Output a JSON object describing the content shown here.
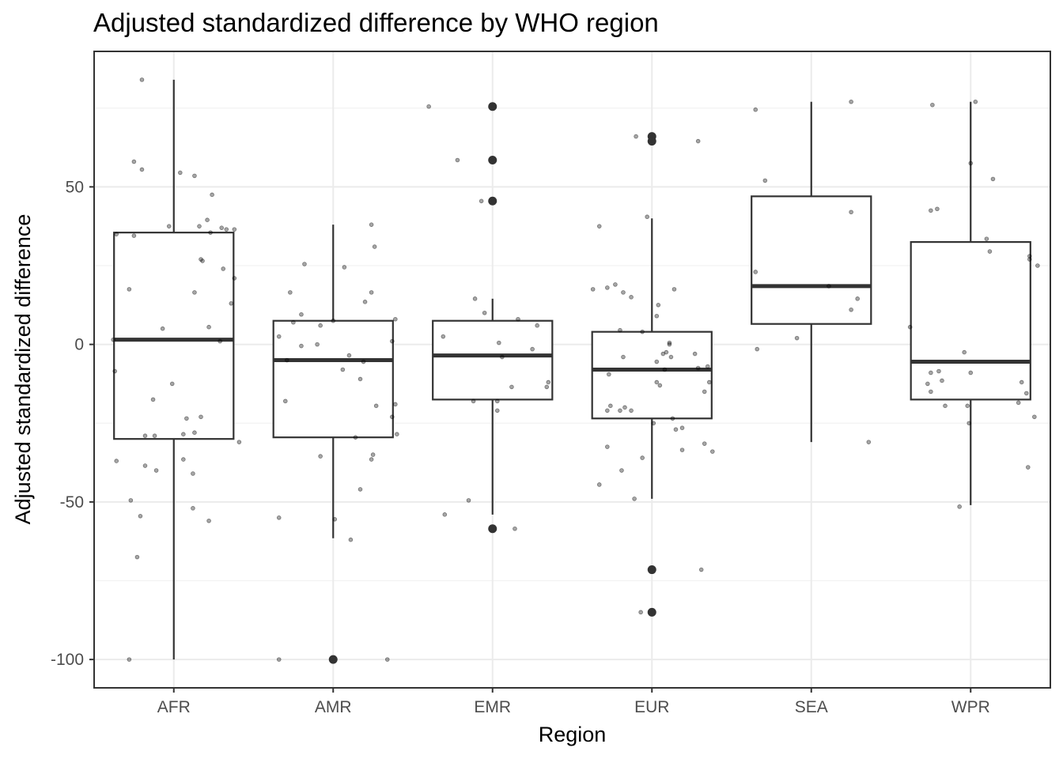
{
  "chart_data": {
    "type": "box",
    "title": "Adjusted standardized difference by WHO region",
    "xlabel": "Region",
    "ylabel": "Adjusted standardized difference",
    "categories": [
      "AFR",
      "AMR",
      "EMR",
      "EUR",
      "SEA",
      "WPR"
    ],
    "ylim": [
      -109,
      93
    ],
    "yticks": [
      -100,
      -50,
      0,
      50
    ],
    "ytick_labels": [
      "-100",
      "-50",
      "0",
      "50"
    ],
    "grid": true,
    "legend": "none",
    "boxes": [
      {
        "category": "AFR",
        "q1": -30,
        "median": 1.5,
        "q3": 35.5,
        "whisker_low": -100,
        "whisker_high": 84,
        "outliers": []
      },
      {
        "category": "AMR",
        "q1": -29.5,
        "median": -5,
        "q3": 7.5,
        "whisker_low": -61.5,
        "whisker_high": 38,
        "outliers": [
          -100
        ]
      },
      {
        "category": "EMR",
        "q1": -17.5,
        "median": -3.5,
        "q3": 7.5,
        "whisker_low": -54,
        "whisker_high": 14.5,
        "outliers": [
          75.5,
          58.5,
          45.5,
          -58.5
        ]
      },
      {
        "category": "EUR",
        "q1": -23.5,
        "median": -8,
        "q3": 4,
        "whisker_low": -49,
        "whisker_high": 40,
        "outliers": [
          66,
          64.5,
          -71.5,
          -85
        ]
      },
      {
        "category": "SEA",
        "q1": 6.5,
        "median": 18.5,
        "q3": 47,
        "whisker_low": -31,
        "whisker_high": 77,
        "outliers": []
      },
      {
        "category": "WPR",
        "q1": -17.5,
        "median": -5.5,
        "q3": 32.5,
        "whisker_low": -51,
        "whisker_high": 77,
        "outliers": []
      }
    ],
    "points": [
      {
        "category": "AFR",
        "dx": -0.2,
        "y": 84
      },
      {
        "category": "AFR",
        "dx": -0.25,
        "y": 58
      },
      {
        "category": "AFR",
        "dx": -0.2,
        "y": 55.5
      },
      {
        "category": "AFR",
        "dx": 0.04,
        "y": 54.5
      },
      {
        "category": "AFR",
        "dx": 0.13,
        "y": 53.5
      },
      {
        "category": "AFR",
        "dx": 0.24,
        "y": 47.5
      },
      {
        "category": "AFR",
        "dx": 0.21,
        "y": 39.5
      },
      {
        "category": "AFR",
        "dx": -0.03,
        "y": 37.5
      },
      {
        "category": "AFR",
        "dx": 0.16,
        "y": 37.5
      },
      {
        "category": "AFR",
        "dx": 0.3,
        "y": 37
      },
      {
        "category": "AFR",
        "dx": 0.33,
        "y": 36.5
      },
      {
        "category": "AFR",
        "dx": 0.38,
        "y": 36.5
      },
      {
        "category": "AFR",
        "dx": 0.23,
        "y": 35.5
      },
      {
        "category": "AFR",
        "dx": -0.36,
        "y": 35
      },
      {
        "category": "AFR",
        "dx": -0.25,
        "y": 34.5
      },
      {
        "category": "AFR",
        "dx": 0.17,
        "y": 27
      },
      {
        "category": "AFR",
        "dx": 0.18,
        "y": 26.5
      },
      {
        "category": "AFR",
        "dx": 0.31,
        "y": 24
      },
      {
        "category": "AFR",
        "dx": 0.38,
        "y": 21
      },
      {
        "category": "AFR",
        "dx": -0.28,
        "y": 17.5
      },
      {
        "category": "AFR",
        "dx": 0.13,
        "y": 16.5
      },
      {
        "category": "AFR",
        "dx": 0.36,
        "y": 13
      },
      {
        "category": "AFR",
        "dx": -0.07,
        "y": 5
      },
      {
        "category": "AFR",
        "dx": 0.22,
        "y": 5.5
      },
      {
        "category": "AFR",
        "dx": -0.38,
        "y": 1.5
      },
      {
        "category": "AFR",
        "dx": 0.29,
        "y": 1
      },
      {
        "category": "AFR",
        "dx": -0.37,
        "y": -8.5
      },
      {
        "category": "AFR",
        "dx": -0.01,
        "y": -12.5
      },
      {
        "category": "AFR",
        "dx": -0.13,
        "y": -17.5
      },
      {
        "category": "AFR",
        "dx": 0.08,
        "y": -23.5
      },
      {
        "category": "AFR",
        "dx": 0.17,
        "y": -23
      },
      {
        "category": "AFR",
        "dx": -0.18,
        "y": -29
      },
      {
        "category": "AFR",
        "dx": -0.12,
        "y": -29
      },
      {
        "category": "AFR",
        "dx": 0.06,
        "y": -28.5
      },
      {
        "category": "AFR",
        "dx": 0.13,
        "y": -28
      },
      {
        "category": "AFR",
        "dx": 0.41,
        "y": -31
      },
      {
        "category": "AFR",
        "dx": -0.36,
        "y": -37
      },
      {
        "category": "AFR",
        "dx": 0.06,
        "y": -36.5
      },
      {
        "category": "AFR",
        "dx": -0.18,
        "y": -38.5
      },
      {
        "category": "AFR",
        "dx": -0.11,
        "y": -40
      },
      {
        "category": "AFR",
        "dx": 0.12,
        "y": -41
      },
      {
        "category": "AFR",
        "dx": -0.27,
        "y": -49.5
      },
      {
        "category": "AFR",
        "dx": 0.12,
        "y": -52
      },
      {
        "category": "AFR",
        "dx": -0.21,
        "y": -54.5
      },
      {
        "category": "AFR",
        "dx": 0.22,
        "y": -56
      },
      {
        "category": "AFR",
        "dx": -0.23,
        "y": -67.5
      },
      {
        "category": "AFR",
        "dx": -0.28,
        "y": -100
      },
      {
        "category": "AMR",
        "dx": 0.24,
        "y": 38
      },
      {
        "category": "AMR",
        "dx": 0.26,
        "y": 31
      },
      {
        "category": "AMR",
        "dx": -0.18,
        "y": 25.5
      },
      {
        "category": "AMR",
        "dx": 0.07,
        "y": 24.5
      },
      {
        "category": "AMR",
        "dx": -0.27,
        "y": 16.5
      },
      {
        "category": "AMR",
        "dx": 0.24,
        "y": 16.5
      },
      {
        "category": "AMR",
        "dx": 0.2,
        "y": 13.5
      },
      {
        "category": "AMR",
        "dx": -0.2,
        "y": 9.5
      },
      {
        "category": "AMR",
        "dx": 0.39,
        "y": 8
      },
      {
        "category": "AMR",
        "dx": 0.0,
        "y": 7.5
      },
      {
        "category": "AMR",
        "dx": -0.25,
        "y": 7
      },
      {
        "category": "AMR",
        "dx": -0.08,
        "y": 6
      },
      {
        "category": "AMR",
        "dx": -0.34,
        "y": 2.5
      },
      {
        "category": "AMR",
        "dx": 0.37,
        "y": 1
      },
      {
        "category": "AMR",
        "dx": -0.1,
        "y": 0
      },
      {
        "category": "AMR",
        "dx": -0.2,
        "y": -0.5
      },
      {
        "category": "AMR",
        "dx": 0.1,
        "y": -3.5
      },
      {
        "category": "AMR",
        "dx": -0.29,
        "y": -5
      },
      {
        "category": "AMR",
        "dx": 0.19,
        "y": -5.5
      },
      {
        "category": "AMR",
        "dx": 0.06,
        "y": -8
      },
      {
        "category": "AMR",
        "dx": 0.17,
        "y": -11
      },
      {
        "category": "AMR",
        "dx": -0.3,
        "y": -18
      },
      {
        "category": "AMR",
        "dx": 0.27,
        "y": -19.5
      },
      {
        "category": "AMR",
        "dx": 0.39,
        "y": -19
      },
      {
        "category": "AMR",
        "dx": 0.37,
        "y": -23
      },
      {
        "category": "AMR",
        "dx": 0.4,
        "y": -28.5
      },
      {
        "category": "AMR",
        "dx": 0.14,
        "y": -29.5
      },
      {
        "category": "AMR",
        "dx": 0.25,
        "y": -35
      },
      {
        "category": "AMR",
        "dx": -0.08,
        "y": -35.5
      },
      {
        "category": "AMR",
        "dx": 0.24,
        "y": -36.5
      },
      {
        "category": "AMR",
        "dx": 0.17,
        "y": -46
      },
      {
        "category": "AMR",
        "dx": -0.34,
        "y": -55
      },
      {
        "category": "AMR",
        "dx": 0.01,
        "y": -55.5
      },
      {
        "category": "AMR",
        "dx": 0.11,
        "y": -62
      },
      {
        "category": "AMR",
        "dx": -0.34,
        "y": -100
      },
      {
        "category": "AMR",
        "dx": 0.34,
        "y": -100
      },
      {
        "category": "EMR",
        "dx": -0.4,
        "y": 75.5
      },
      {
        "category": "EMR",
        "dx": -0.22,
        "y": 58.5
      },
      {
        "category": "EMR",
        "dx": -0.07,
        "y": 45.5
      },
      {
        "category": "EMR",
        "dx": -0.11,
        "y": 14.5
      },
      {
        "category": "EMR",
        "dx": -0.05,
        "y": 10
      },
      {
        "category": "EMR",
        "dx": 0.16,
        "y": 8
      },
      {
        "category": "EMR",
        "dx": 0.28,
        "y": 6
      },
      {
        "category": "EMR",
        "dx": -0.31,
        "y": 2.5
      },
      {
        "category": "EMR",
        "dx": 0.04,
        "y": 0.5
      },
      {
        "category": "EMR",
        "dx": 0.25,
        "y": -1.5
      },
      {
        "category": "EMR",
        "dx": 0.06,
        "y": -4
      },
      {
        "category": "EMR",
        "dx": 0.35,
        "y": -12
      },
      {
        "category": "EMR",
        "dx": 0.34,
        "y": -13.5
      },
      {
        "category": "EMR",
        "dx": 0.12,
        "y": -13.5
      },
      {
        "category": "EMR",
        "dx": -0.12,
        "y": -18
      },
      {
        "category": "EMR",
        "dx": 0.03,
        "y": -18
      },
      {
        "category": "EMR",
        "dx": 0.03,
        "y": -21
      },
      {
        "category": "EMR",
        "dx": -0.15,
        "y": -49.5
      },
      {
        "category": "EMR",
        "dx": -0.3,
        "y": -54
      },
      {
        "category": "EMR",
        "dx": 0.14,
        "y": -58.5
      },
      {
        "category": "EUR",
        "dx": -0.1,
        "y": 66
      },
      {
        "category": "EUR",
        "dx": 0.29,
        "y": 64.5
      },
      {
        "category": "EUR",
        "dx": -0.03,
        "y": 40.5
      },
      {
        "category": "EUR",
        "dx": -0.33,
        "y": 37.5
      },
      {
        "category": "EUR",
        "dx": -0.37,
        "y": 17.5
      },
      {
        "category": "EUR",
        "dx": -0.23,
        "y": 19
      },
      {
        "category": "EUR",
        "dx": -0.28,
        "y": 18
      },
      {
        "category": "EUR",
        "dx": -0.18,
        "y": 16.5
      },
      {
        "category": "EUR",
        "dx": -0.13,
        "y": 15
      },
      {
        "category": "EUR",
        "dx": 0.14,
        "y": 17.5
      },
      {
        "category": "EUR",
        "dx": 0.04,
        "y": 12.5
      },
      {
        "category": "EUR",
        "dx": 0.03,
        "y": 9
      },
      {
        "category": "EUR",
        "dx": -0.2,
        "y": 4.5
      },
      {
        "category": "EUR",
        "dx": -0.06,
        "y": 4
      },
      {
        "category": "EUR",
        "dx": 0.11,
        "y": 0.5
      },
      {
        "category": "EUR",
        "dx": 0.11,
        "y": 0
      },
      {
        "category": "EUR",
        "dx": 0.09,
        "y": -2.5
      },
      {
        "category": "EUR",
        "dx": 0.07,
        "y": -3
      },
      {
        "category": "EUR",
        "dx": 0.27,
        "y": -3
      },
      {
        "category": "EUR",
        "dx": -0.18,
        "y": -4
      },
      {
        "category": "EUR",
        "dx": 0.12,
        "y": -4
      },
      {
        "category": "EUR",
        "dx": 0.03,
        "y": -5.5
      },
      {
        "category": "EUR",
        "dx": 0.08,
        "y": -8
      },
      {
        "category": "EUR",
        "dx": 0.29,
        "y": -7.5
      },
      {
        "category": "EUR",
        "dx": 0.35,
        "y": -7
      },
      {
        "category": "EUR",
        "dx": -0.27,
        "y": -9.5
      },
      {
        "category": "EUR",
        "dx": 0.03,
        "y": -12
      },
      {
        "category": "EUR",
        "dx": 0.05,
        "y": -13
      },
      {
        "category": "EUR",
        "dx": 0.36,
        "y": -12
      },
      {
        "category": "EUR",
        "dx": 0.33,
        "y": -15
      },
      {
        "category": "EUR",
        "dx": -0.26,
        "y": -19.5
      },
      {
        "category": "EUR",
        "dx": -0.17,
        "y": -20
      },
      {
        "category": "EUR",
        "dx": -0.28,
        "y": -21
      },
      {
        "category": "EUR",
        "dx": -0.2,
        "y": -21
      },
      {
        "category": "EUR",
        "dx": -0.13,
        "y": -21
      },
      {
        "category": "EUR",
        "dx": 0.13,
        "y": -23.5
      },
      {
        "category": "EUR",
        "dx": 0.01,
        "y": -25
      },
      {
        "category": "EUR",
        "dx": 0.19,
        "y": -26.5
      },
      {
        "category": "EUR",
        "dx": 0.15,
        "y": -27
      },
      {
        "category": "EUR",
        "dx": 0.33,
        "y": -31.5
      },
      {
        "category": "EUR",
        "dx": -0.28,
        "y": -32.5
      },
      {
        "category": "EUR",
        "dx": 0.19,
        "y": -33.5
      },
      {
        "category": "EUR",
        "dx": 0.38,
        "y": -34
      },
      {
        "category": "EUR",
        "dx": -0.06,
        "y": -36
      },
      {
        "category": "EUR",
        "dx": -0.19,
        "y": -40
      },
      {
        "category": "EUR",
        "dx": -0.33,
        "y": -44.5
      },
      {
        "category": "EUR",
        "dx": -0.11,
        "y": -49
      },
      {
        "category": "EUR",
        "dx": 0.31,
        "y": -71.5
      },
      {
        "category": "EUR",
        "dx": -0.07,
        "y": -85
      },
      {
        "category": "SEA",
        "dx": -0.35,
        "y": 74.5
      },
      {
        "category": "SEA",
        "dx": 0.25,
        "y": 77
      },
      {
        "category": "SEA",
        "dx": -0.29,
        "y": 52
      },
      {
        "category": "SEA",
        "dx": 0.25,
        "y": 42
      },
      {
        "category": "SEA",
        "dx": -0.35,
        "y": 23
      },
      {
        "category": "SEA",
        "dx": 0.11,
        "y": 18.5
      },
      {
        "category": "SEA",
        "dx": 0.29,
        "y": 14.5
      },
      {
        "category": "SEA",
        "dx": 0.25,
        "y": 11
      },
      {
        "category": "SEA",
        "dx": -0.09,
        "y": 2
      },
      {
        "category": "SEA",
        "dx": -0.34,
        "y": -1.5
      },
      {
        "category": "SEA",
        "dx": 0.36,
        "y": -31
      },
      {
        "category": "WPR",
        "dx": -0.24,
        "y": 76
      },
      {
        "category": "WPR",
        "dx": 0.03,
        "y": 77
      },
      {
        "category": "WPR",
        "dx": 0.0,
        "y": 57.5
      },
      {
        "category": "WPR",
        "dx": 0.14,
        "y": 52.5
      },
      {
        "category": "WPR",
        "dx": -0.25,
        "y": 42.5
      },
      {
        "category": "WPR",
        "dx": -0.21,
        "y": 43
      },
      {
        "category": "WPR",
        "dx": 0.1,
        "y": 33.5
      },
      {
        "category": "WPR",
        "dx": 0.12,
        "y": 29.5
      },
      {
        "category": "WPR",
        "dx": 0.37,
        "y": 28
      },
      {
        "category": "WPR",
        "dx": 0.37,
        "y": 27
      },
      {
        "category": "WPR",
        "dx": 0.42,
        "y": 25
      },
      {
        "category": "WPR",
        "dx": -0.38,
        "y": 5.5
      },
      {
        "category": "WPR",
        "dx": -0.04,
        "y": -2.5
      },
      {
        "category": "WPR",
        "dx": -0.2,
        "y": -8.5
      },
      {
        "category": "WPR",
        "dx": 0.0,
        "y": -9
      },
      {
        "category": "WPR",
        "dx": -0.25,
        "y": -9
      },
      {
        "category": "WPR",
        "dx": -0.27,
        "y": -12.5
      },
      {
        "category": "WPR",
        "dx": -0.18,
        "y": -11.5
      },
      {
        "category": "WPR",
        "dx": 0.32,
        "y": -12
      },
      {
        "category": "WPR",
        "dx": -0.25,
        "y": -15
      },
      {
        "category": "WPR",
        "dx": 0.35,
        "y": -15.5
      },
      {
        "category": "WPR",
        "dx": 0.3,
        "y": -18.5
      },
      {
        "category": "WPR",
        "dx": -0.02,
        "y": -19.5
      },
      {
        "category": "WPR",
        "dx": -0.16,
        "y": -19.5
      },
      {
        "category": "WPR",
        "dx": 0.4,
        "y": -23
      },
      {
        "category": "WPR",
        "dx": -0.01,
        "y": -25
      },
      {
        "category": "WPR",
        "dx": 0.36,
        "y": -39
      },
      {
        "category": "WPR",
        "dx": -0.07,
        "y": -51.5
      }
    ]
  }
}
